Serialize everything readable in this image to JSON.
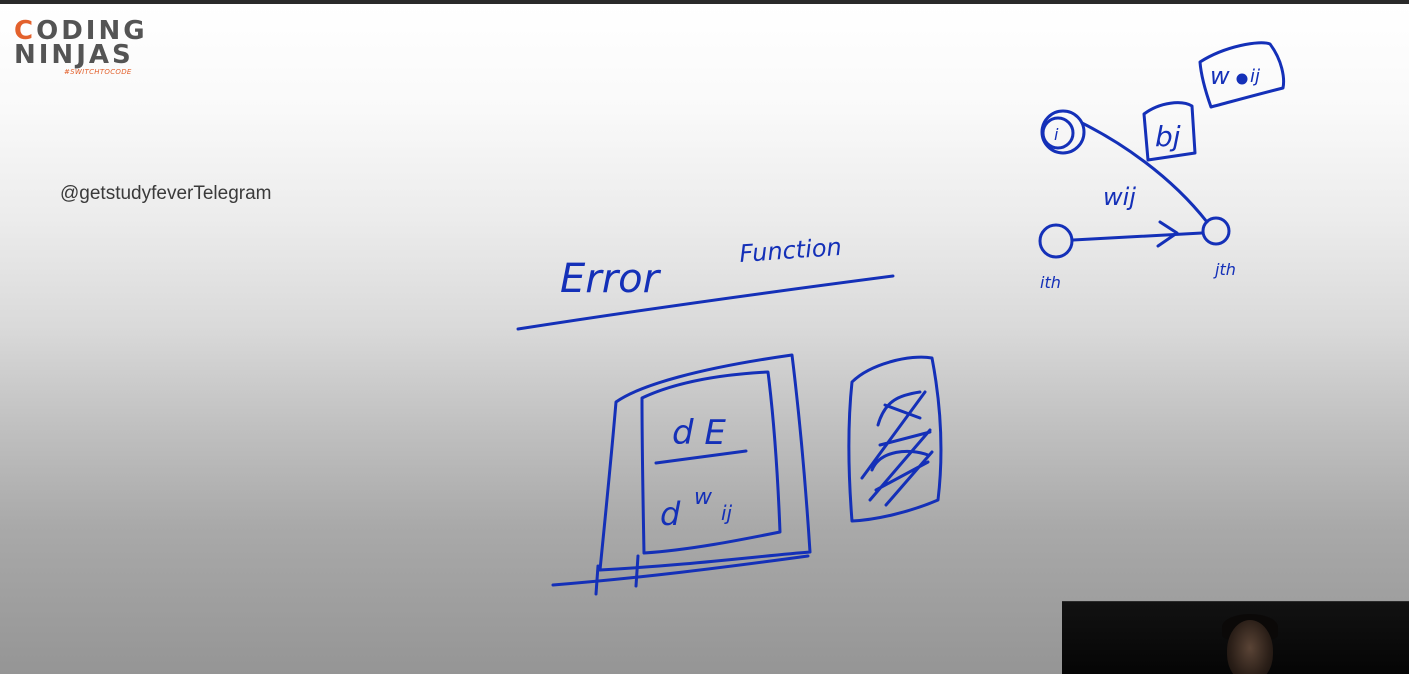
{
  "logo": {
    "line1_accent": "C",
    "line1_rest": "ODING",
    "line2": "NINJAS",
    "tagline": "#SWITCHTOCODE"
  },
  "watermark": "@getstudyfeverTelegram",
  "handwriting": {
    "title_word1": "Error",
    "title_word2": "Function",
    "numerator": "d E",
    "denominator_d": "d",
    "denominator_w": "w",
    "denominator_sub": "ij",
    "bias_label": "bj",
    "weight_box_label": "w",
    "weight_box_sub": "ij",
    "node_i_label": "i",
    "edge_label": "wij",
    "ith_label": "ith",
    "jth_label": "jth"
  },
  "colors": {
    "ink": "#1430b8",
    "logo_accent": "#e3612c",
    "logo_text": "#545454"
  }
}
